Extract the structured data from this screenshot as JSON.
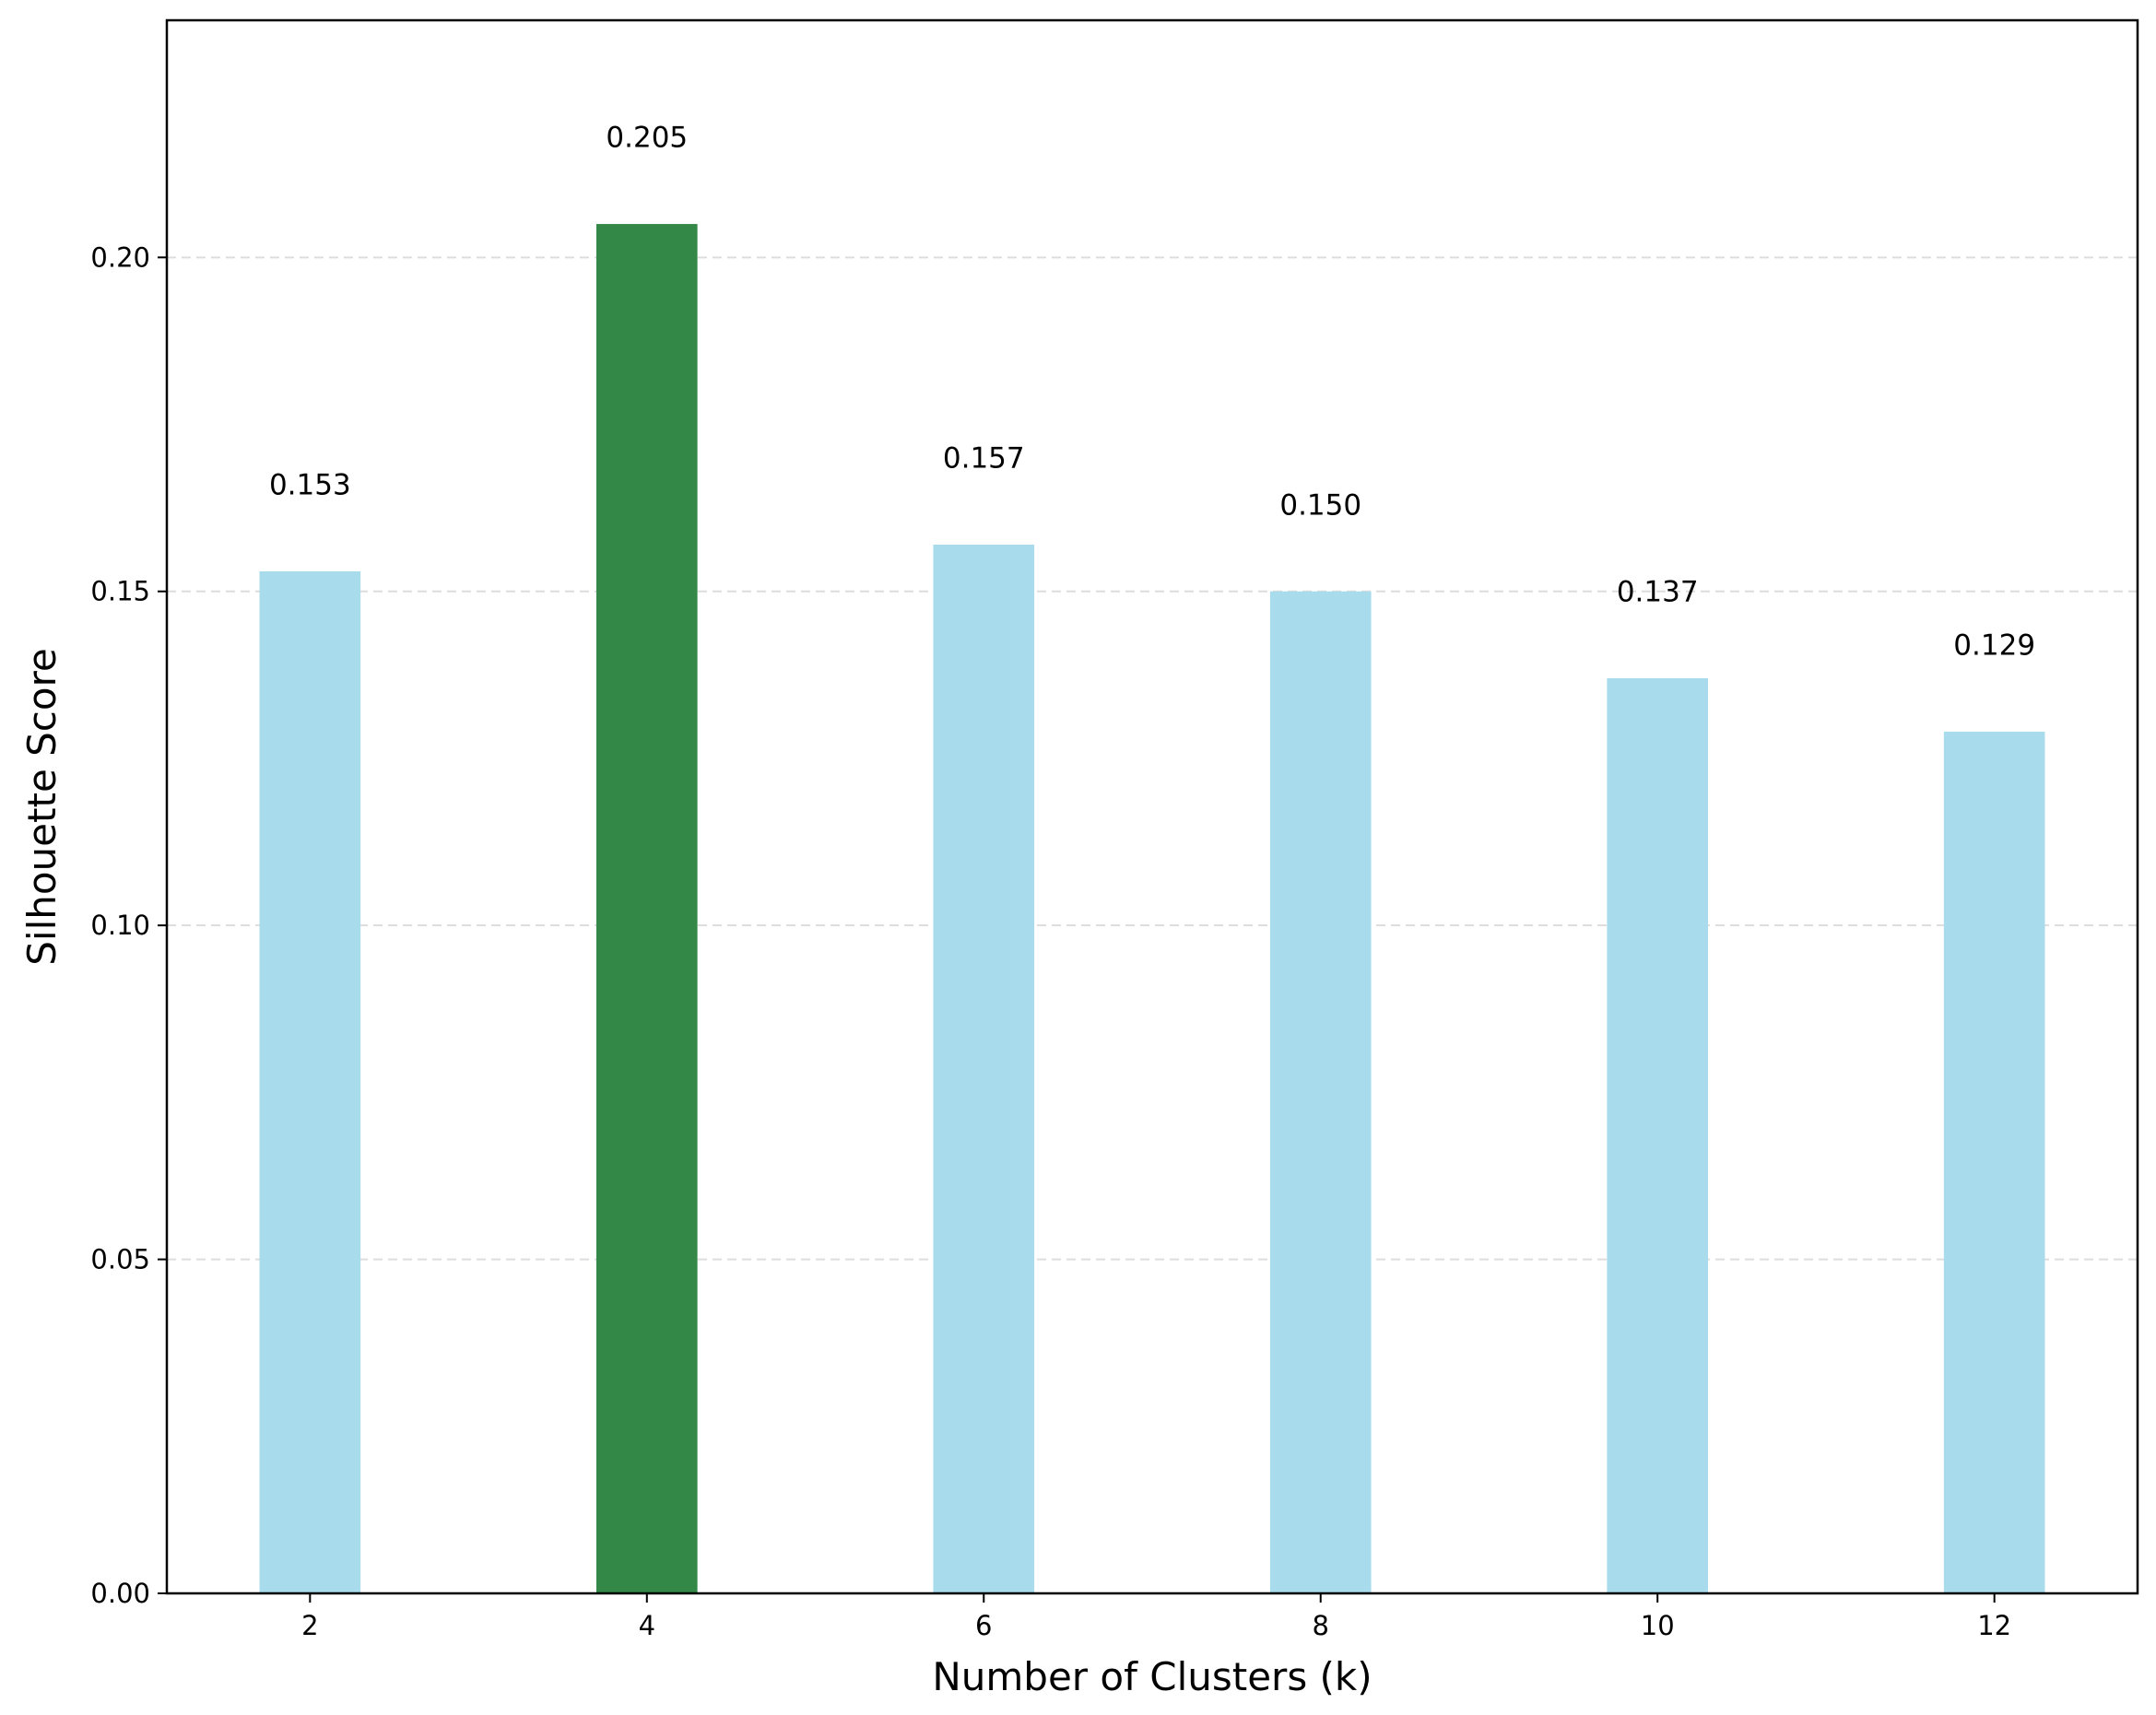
{
  "chart_data": {
    "type": "bar",
    "categories": [
      "2",
      "4",
      "6",
      "8",
      "10",
      "12"
    ],
    "x": [
      2,
      4,
      6,
      8,
      10,
      12
    ],
    "values": [
      0.153,
      0.205,
      0.157,
      0.15,
      0.137,
      0.129
    ],
    "data_labels": [
      "0.153",
      "0.205",
      "0.157",
      "0.150",
      "0.137",
      "0.129"
    ],
    "highlight_index": 1,
    "title": "",
    "xlabel": "Number of Clusters (k)",
    "ylabel": "Silhouette Score",
    "xlim": [
      1.15,
      12.85
    ],
    "ylim": [
      0,
      0.2355
    ],
    "yticks": [
      0.0,
      0.05,
      0.1,
      0.15,
      0.2
    ],
    "ytick_labels": [
      "0.00",
      "0.05",
      "0.10",
      "0.15",
      "0.20"
    ],
    "bar_width_units": 0.6,
    "grid": "horizontal dashed",
    "legend": "none",
    "colors": {
      "bar": "#a8dbec",
      "highlight": "#338747",
      "grid": "#dddddd",
      "axis": "#000000"
    }
  }
}
